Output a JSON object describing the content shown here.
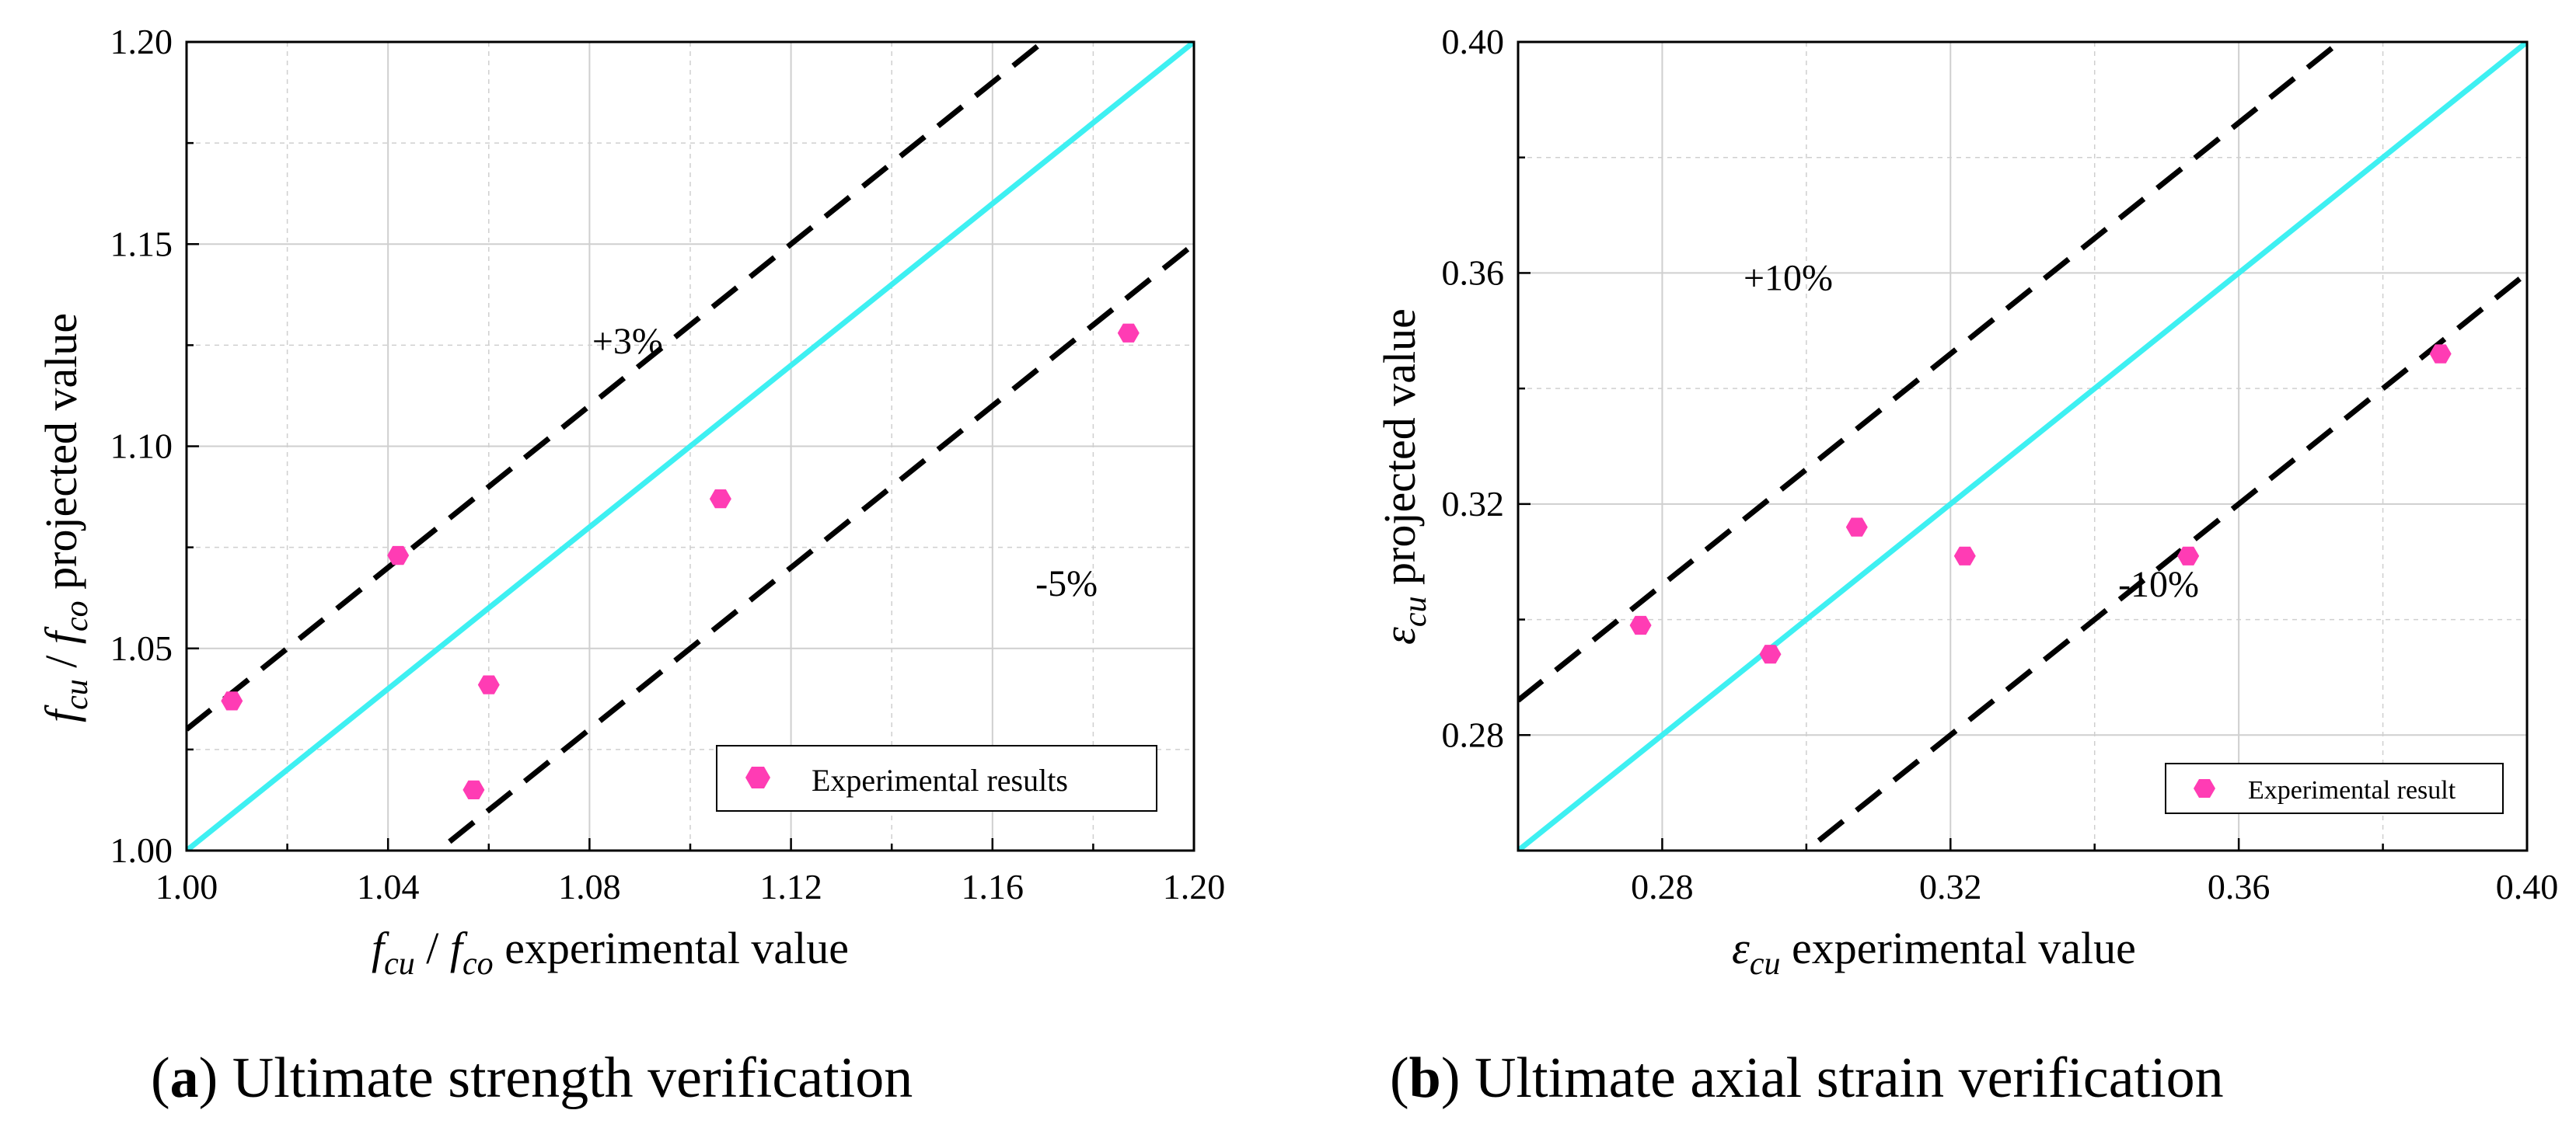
{
  "colors": {
    "reference_line": "#3ef0f2",
    "bound_line": "#000000",
    "marker": "#ff3cb4",
    "grid": "#cfcfcf"
  },
  "chart_data": [
    {
      "id": "a",
      "type": "scatter",
      "xlabel_sym": "f",
      "xlabel_sub1": "cu",
      "xlabel_sub2": "co",
      "xlabel_text": "experimental value",
      "ylabel_text": "projected value",
      "xlim": [
        1.0,
        1.2
      ],
      "ylim": [
        1.0,
        1.2
      ],
      "xticks": [
        "1.00",
        "1.04",
        "1.08",
        "1.12",
        "1.16",
        "1.20"
      ],
      "yticks": [
        "1.00",
        "1.05",
        "1.10",
        "1.15",
        "1.20"
      ],
      "series": [
        {
          "name": "Experimental results",
          "x": [
            1.009,
            1.042,
            1.057,
            1.06,
            1.106,
            1.187
          ],
          "y": [
            1.037,
            1.073,
            1.015,
            1.041,
            1.087,
            1.128
          ]
        }
      ],
      "reference_lines": [
        {
          "name": "ideal",
          "offset": 0.0
        },
        {
          "name": "upper",
          "offset": 0.03,
          "label": "+3%",
          "label_x": 1.083,
          "label_y": 1.123
        },
        {
          "name": "lower",
          "offset": -0.05,
          "label": "-5%",
          "label_x": 1.171,
          "label_y": 1.063
        }
      ],
      "legend_position": "bottom-right",
      "caption_letter": "a",
      "caption_text": ") Ultimate strength verification"
    },
    {
      "id": "b",
      "type": "scatter",
      "xlabel_sym": "ε",
      "xlabel_sub1": "cu",
      "xlabel_text": "experimental value",
      "ylabel_text": "projected value",
      "xlim": [
        0.26,
        0.4
      ],
      "ylim": [
        0.26,
        0.4
      ],
      "xticks": [
        "0.28",
        "0.32",
        "0.36",
        "0.40"
      ],
      "yticks": [
        "0.28",
        "0.32",
        "0.36",
        "0.40"
      ],
      "series": [
        {
          "name": "Experimental result",
          "x": [
            0.277,
            0.295,
            0.307,
            0.322,
            0.353,
            0.388
          ],
          "y": [
            0.299,
            0.294,
            0.316,
            0.311,
            0.311,
            0.346
          ]
        }
      ],
      "reference_lines": [
        {
          "name": "ideal",
          "offset": 0.0
        },
        {
          "name": "upper",
          "offset": 0.026,
          "label": "+10%",
          "label_x": 0.293,
          "label_y": 0.357
        },
        {
          "name": "lower",
          "offset": -0.04,
          "label": "-10%",
          "label_x": 0.345,
          "label_y": 0.304
        }
      ],
      "legend_position": "bottom-right",
      "caption_letter": "b",
      "caption_text": ") Ultimate axial strain verification"
    }
  ]
}
